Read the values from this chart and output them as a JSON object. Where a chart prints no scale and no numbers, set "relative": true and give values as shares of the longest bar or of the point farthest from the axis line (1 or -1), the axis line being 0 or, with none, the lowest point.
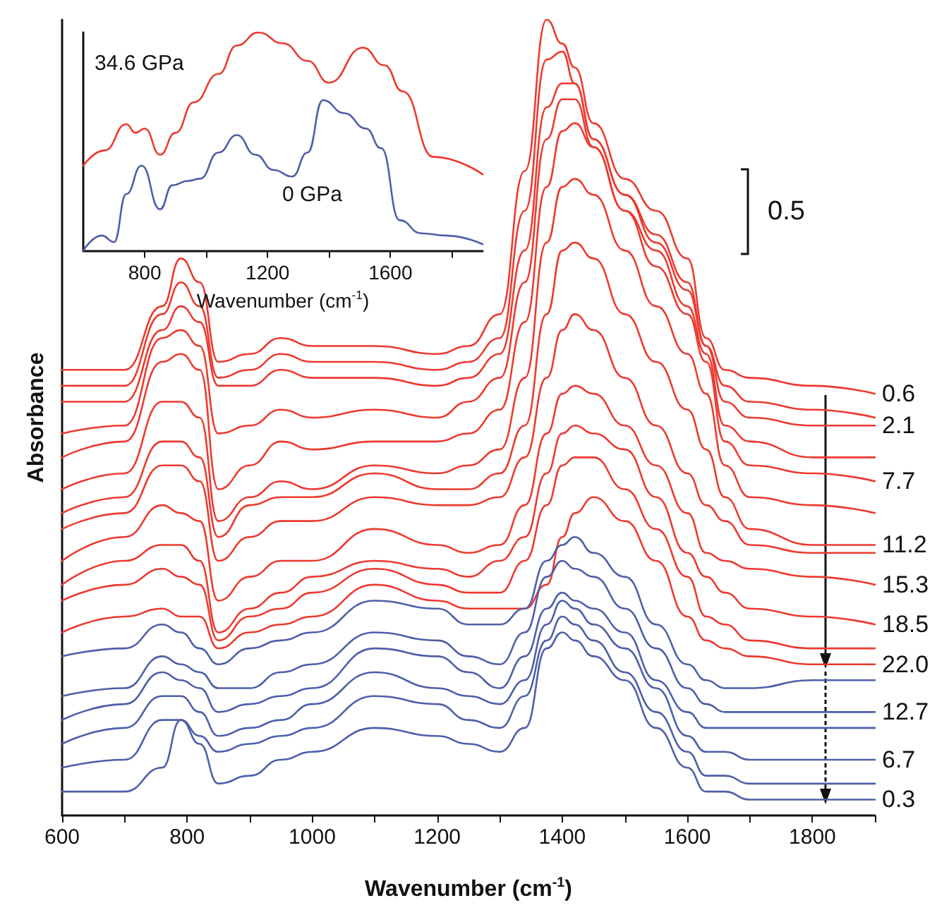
{
  "chart_data": [
    {
      "type": "line",
      "relative": true,
      "xlabel": "Wavenumber (cm$^{-1}$)",
      "ylabel": "Absorbance",
      "xlim": [
        600,
        1900
      ],
      "xticks": [
        600,
        {
          "value": 700,
          "label": null
        },
        800,
        {
          "value": 900,
          "label": null
        },
        1000,
        {
          "value": 1100,
          "label": null
        },
        1200,
        {
          "value": 1300,
          "label": null
        },
        1400,
        {
          "value": 1500,
          "label": null
        },
        1600,
        {
          "value": 1700,
          "label": null
        },
        1800,
        {
          "value": 1900,
          "label": null
        }
      ],
      "x": [
        600,
        700,
        760,
        790,
        820,
        850,
        900,
        950,
        1000,
        1100,
        1200,
        1250,
        1300,
        1340,
        1375,
        1400,
        1420,
        1450,
        1500,
        1550,
        1600,
        1630,
        1660,
        1700,
        1800,
        1900
      ],
      "grid": false,
      "legend": false,
      "marker": "none",
      "line_style": "solid",
      "annotations": [
        "0.5"
      ],
      "series": [
        {
          "name": "0.6",
          "color": "#ec3a2f",
          "values": [
            0.56,
            0.56,
            0.64,
            0.7,
            0.67,
            0.57,
            0.58,
            0.6,
            0.59,
            0.59,
            0.58,
            0.59,
            0.63,
            0.81,
            1,
            0.97,
            0.94,
            0.87,
            0.8,
            0.76,
            0.7,
            0.6,
            0.56,
            0.55,
            0.54,
            0.53
          ]
        },
        {
          "color": "#ec3a2f",
          "values": [
            0.54,
            0.54,
            0.63,
            0.67,
            0.64,
            0.55,
            0.56,
            0.58,
            0.57,
            0.57,
            0.56,
            0.57,
            0.6,
            0.76,
            0.95,
            0.96,
            0.92,
            0.85,
            0.78,
            0.73,
            0.67,
            0.59,
            0.54,
            0.52,
            0.51,
            0.5
          ]
        },
        {
          "name": "2.1",
          "color": "#ec3a2f",
          "values": [
            0.52,
            0.52,
            0.61,
            0.64,
            0.62,
            0.54,
            0.54,
            0.56,
            0.55,
            0.55,
            0.54,
            0.55,
            0.58,
            0.71,
            0.89,
            0.92,
            0.92,
            0.85,
            0.78,
            0.72,
            0.66,
            0.59,
            0.52,
            0.5,
            0.49,
            0.49
          ]
        },
        {
          "color": "#ec3a2f",
          "values": [
            0.48,
            0.49,
            0.6,
            0.61,
            0.59,
            0.48,
            0.49,
            0.51,
            0.5,
            0.51,
            0.5,
            0.52,
            0.55,
            0.67,
            0.85,
            0.9,
            0.9,
            0.84,
            0.76,
            0.71,
            0.64,
            0.58,
            0.49,
            0.47,
            0.45,
            0.45
          ]
        },
        {
          "name": "7.7",
          "color": "#ec3a2f",
          "values": [
            0.45,
            0.47,
            0.57,
            0.58,
            0.56,
            0.41,
            0.44,
            0.47,
            0.46,
            0.47,
            0.47,
            0.48,
            0.51,
            0.62,
            0.79,
            0.86,
            0.87,
            0.84,
            0.76,
            0.69,
            0.63,
            0.57,
            0.47,
            0.44,
            0.43,
            0.42
          ]
        },
        {
          "color": "#ec3a2f",
          "values": [
            0.41,
            0.43,
            0.52,
            0.52,
            0.5,
            0.37,
            0.4,
            0.42,
            0.41,
            0.44,
            0.43,
            0.44,
            0.46,
            0.55,
            0.72,
            0.79,
            0.8,
            0.78,
            0.71,
            0.64,
            0.58,
            0.53,
            0.44,
            0.4,
            0.39,
            0.38
          ]
        },
        {
          "name": "11.2",
          "color": "#ec3a2f",
          "values": [
            0.38,
            0.4,
            0.47,
            0.47,
            0.45,
            0.35,
            0.39,
            0.4,
            0.4,
            0.43,
            0.41,
            0.41,
            0.43,
            0.49,
            0.63,
            0.71,
            0.72,
            0.7,
            0.63,
            0.57,
            0.51,
            0.46,
            0.4,
            0.36,
            0.34,
            0.34
          ]
        },
        {
          "color": "#ec3a2f",
          "values": [
            0.36,
            0.38,
            0.44,
            0.44,
            0.42,
            0.32,
            0.35,
            0.37,
            0.37,
            0.4,
            0.39,
            0.39,
            0.4,
            0.45,
            0.55,
            0.61,
            0.63,
            0.61,
            0.55,
            0.49,
            0.43,
            0.39,
            0.37,
            0.34,
            0.33,
            0.33
          ]
        },
        {
          "name": "15.3",
          "color": "#ec3a2f",
          "values": [
            0.32,
            0.35,
            0.39,
            0.38,
            0.37,
            0.27,
            0.3,
            0.32,
            0.32,
            0.36,
            0.34,
            0.33,
            0.34,
            0.39,
            0.48,
            0.53,
            0.54,
            0.53,
            0.49,
            0.44,
            0.38,
            0.33,
            0.32,
            0.31,
            0.3,
            0.29
          ]
        },
        {
          "name": "18.5",
          "color": "#ec3a2f",
          "values": [
            0.29,
            0.32,
            0.34,
            0.34,
            0.32,
            0.23,
            0.26,
            0.28,
            0.3,
            0.32,
            0.31,
            0.3,
            0.32,
            0.35,
            0.43,
            0.48,
            0.49,
            0.48,
            0.46,
            0.4,
            0.33,
            0.3,
            0.28,
            0.26,
            0.25,
            0.24
          ]
        },
        {
          "color": "#ec3a2f",
          "values": [
            0.27,
            0.29,
            0.31,
            0.3,
            0.29,
            0.22,
            0.25,
            0.26,
            0.28,
            0.31,
            0.29,
            0.28,
            0.28,
            0.32,
            0.39,
            0.44,
            0.45,
            0.45,
            0.41,
            0.36,
            0.3,
            0.25,
            0.24,
            0.22,
            0.21,
            0.21
          ]
        },
        {
          "name": "22.0",
          "color": "#ec3a2f",
          "values": [
            0.23,
            0.25,
            0.26,
            0.25,
            0.25,
            0.21,
            0.23,
            0.24,
            0.25,
            0.29,
            0.27,
            0.26,
            0.26,
            0.26,
            0.29,
            0.35,
            0.38,
            0.4,
            0.37,
            0.32,
            0.25,
            0.22,
            0.21,
            0.2,
            0.19,
            0.19
          ]
        },
        {
          "color": "#4d5fa8",
          "values": [
            0.2,
            0.21,
            0.24,
            0.23,
            0.21,
            0.19,
            0.21,
            0.22,
            0.23,
            0.27,
            0.26,
            0.24,
            0.24,
            0.26,
            0.32,
            0.34,
            0.35,
            0.33,
            0.3,
            0.24,
            0.19,
            0.17,
            0.16,
            0.16,
            0.17,
            0.17
          ]
        },
        {
          "name": "12.7",
          "color": "#4d5fa8",
          "values": [
            0.15,
            0.16,
            0.2,
            0.19,
            0.18,
            0.16,
            0.16,
            0.18,
            0.19,
            0.23,
            0.22,
            0.2,
            0.19,
            0.23,
            0.3,
            0.32,
            0.31,
            0.3,
            0.26,
            0.21,
            0.16,
            0.14,
            0.13,
            0.13,
            0.13,
            0.13
          ]
        },
        {
          "color": "#4d5fa8",
          "values": [
            0.12,
            0.14,
            0.18,
            0.17,
            0.16,
            0.13,
            0.14,
            0.15,
            0.16,
            0.21,
            0.2,
            0.18,
            0.16,
            0.2,
            0.26,
            0.28,
            0.27,
            0.26,
            0.23,
            0.17,
            0.13,
            0.11,
            0.11,
            0.11,
            0.11,
            0.11
          ]
        },
        {
          "name": "6.7",
          "color": "#4d5fa8",
          "values": [
            0.09,
            0.11,
            0.15,
            0.15,
            0.13,
            0.1,
            0.11,
            0.12,
            0.14,
            0.18,
            0.16,
            0.15,
            0.14,
            0.17,
            0.24,
            0.27,
            0.26,
            0.24,
            0.21,
            0.16,
            0.1,
            0.08,
            0.08,
            0.07,
            0.07,
            0.07
          ]
        },
        {
          "color": "#4d5fa8",
          "values": [
            0.06,
            0.07,
            0.12,
            0.12,
            0.1,
            0.08,
            0.09,
            0.1,
            0.11,
            0.15,
            0.14,
            0.12,
            0.11,
            0.15,
            0.22,
            0.25,
            0.24,
            0.22,
            0.18,
            0.13,
            0.08,
            0.05,
            0.05,
            0.04,
            0.04,
            0.04
          ]
        },
        {
          "name": "0.3",
          "color": "#4d5fa8",
          "values": [
            0.03,
            0.03,
            0.06,
            0.12,
            0.09,
            0.04,
            0.05,
            0.07,
            0.08,
            0.11,
            0.1,
            0.09,
            0.08,
            0.11,
            0.21,
            0.23,
            0.22,
            0.2,
            0.17,
            0.11,
            0.06,
            0.03,
            0.03,
            0.02,
            0.02,
            0.02
          ]
        }
      ]
    },
    {
      "type": "line",
      "relative": true,
      "xlabel": "Wavenumber (cm$^{-1}$)",
      "xlim": [
        600,
        1900
      ],
      "xticks": [
        800,
        {
          "value": 1000,
          "label": null
        },
        1200,
        {
          "value": 1400,
          "label": null
        },
        1600,
        {
          "value": 1800,
          "label": null
        }
      ],
      "grid": false,
      "legend": false,
      "marker": "none",
      "line_style": "solid",
      "annotations": [
        "34.6 GPa",
        "0 GPa"
      ],
      "series": [
        {
          "color": "#ec3a2f",
          "x": [
            600,
            670,
            740,
            770,
            800,
            850,
            900,
            960,
            1040,
            1100,
            1170,
            1250,
            1330,
            1400,
            1510,
            1580,
            1640,
            1740,
            1900
          ],
          "values": [
            0.39,
            0.46,
            0.58,
            0.54,
            0.56,
            0.44,
            0.54,
            0.68,
            0.81,
            0.94,
            1,
            0.95,
            0.87,
            0.77,
            0.93,
            0.85,
            0.73,
            0.43,
            0.35
          ]
        },
        {
          "color": "#4d5fa8",
          "x": [
            600,
            660,
            700,
            740,
            790,
            850,
            890,
            940,
            980,
            1040,
            1100,
            1160,
            1220,
            1280,
            1330,
            1380,
            1450,
            1520,
            1570,
            1630,
            1700,
            1780,
            1900
          ],
          "values": [
            0,
            0.07,
            0.04,
            0.26,
            0.39,
            0.19,
            0.3,
            0.32,
            0.33,
            0.45,
            0.53,
            0.44,
            0.37,
            0.34,
            0.45,
            0.69,
            0.63,
            0.56,
            0.47,
            0.14,
            0.08,
            0.07,
            0.03
          ]
        }
      ]
    }
  ]
}
